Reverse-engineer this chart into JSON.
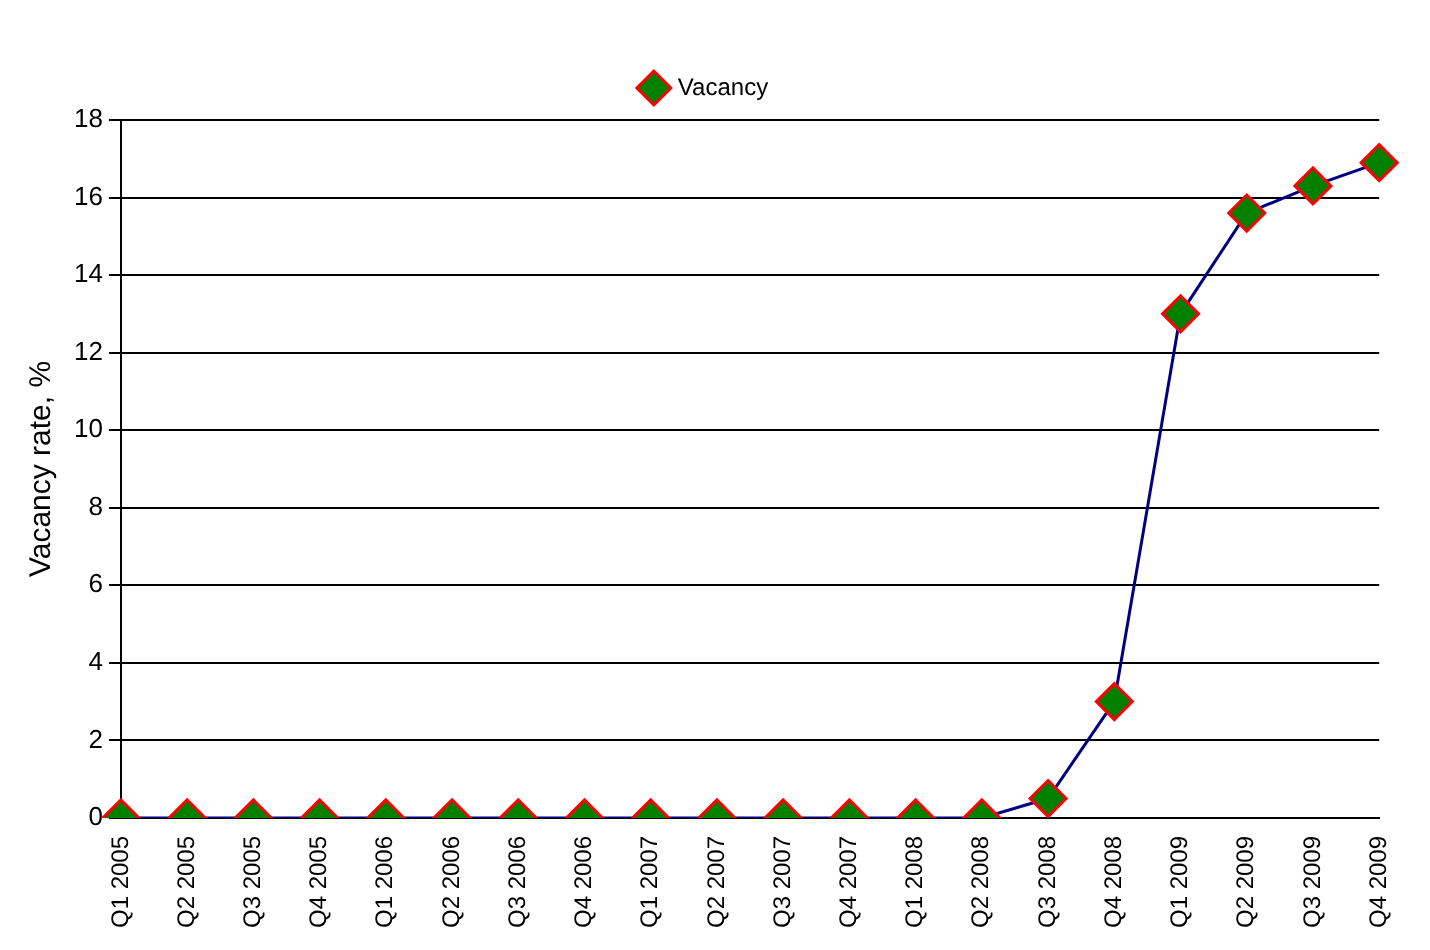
{
  "chart_data": {
    "type": "line",
    "ylabel": "Vacancy rate, %",
    "categories": [
      "Q1 2005",
      "Q2 2005",
      "Q3 2005",
      "Q4 2005",
      "Q1 2006",
      "Q2 2006",
      "Q3 2006",
      "Q4 2006",
      "Q1 2007",
      "Q2 2007",
      "Q3 2007",
      "Q4 2007",
      "Q1 2008",
      "Q2 2008",
      "Q3 2008",
      "Q4 2008",
      "Q1 2009",
      "Q2 2009",
      "Q3 2009",
      "Q4 2009"
    ],
    "series": [
      {
        "name": "Vacancy",
        "color": "#000080",
        "values": [
          0,
          0,
          0,
          0,
          0,
          0,
          0,
          0,
          0,
          0,
          0,
          0,
          0,
          0,
          0.5,
          3,
          13,
          15.6,
          16.3,
          16.9
        ]
      }
    ],
    "ylim": [
      0,
      18
    ],
    "yticks": [
      0,
      2,
      4,
      6,
      8,
      10,
      12,
      14,
      16,
      18
    ],
    "grid": "y",
    "legend": "top",
    "marker": "diamond",
    "line_style": "solid"
  }
}
